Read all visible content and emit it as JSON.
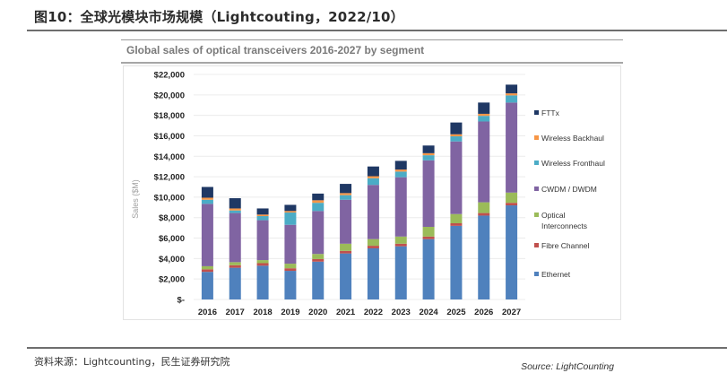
{
  "figure": {
    "title": "图10：全球光模块市场规模（Lightcouting，2022/10）",
    "footnote": "资料来源：Lightcounting，民生证券研究院"
  },
  "chart_data": {
    "type": "bar",
    "stacked": true,
    "title": "Global sales of optical transceivers 2016-2027 by segment",
    "xlabel": "",
    "ylabel": "Sales ($M)",
    "source": "Source: LightCounting",
    "ylim": [
      0,
      22000
    ],
    "yticks": [
      0,
      2000,
      4000,
      6000,
      8000,
      10000,
      12000,
      14000,
      16000,
      18000,
      20000,
      22000
    ],
    "ytick_labels": [
      "$-",
      "$2,000",
      "$4,000",
      "$6,000",
      "$8,000",
      "$10,000",
      "$12,000",
      "$14,000",
      "$16,000",
      "$18,000",
      "$20,000",
      "$22,000"
    ],
    "grid": true,
    "legend_position": "right",
    "categories": [
      "2016",
      "2017",
      "2018",
      "2019",
      "2020",
      "2021",
      "2022",
      "2023",
      "2024",
      "2025",
      "2026",
      "2027"
    ],
    "series": [
      {
        "name": "Ethernet",
        "color": "#4f81bd",
        "values": [
          2700,
          3100,
          3300,
          2800,
          3700,
          4500,
          5000,
          5200,
          5900,
          7200,
          8200,
          9200
        ]
      },
      {
        "name": "Fibre Channel",
        "color": "#c0504d",
        "values": [
          250,
          250,
          250,
          250,
          250,
          250,
          250,
          250,
          250,
          250,
          250,
          250
        ]
      },
      {
        "name": "Optical Interconnects",
        "color": "#9bbb59",
        "values": [
          300,
          300,
          300,
          450,
          500,
          700,
          650,
          700,
          950,
          900,
          1050,
          1000
        ]
      },
      {
        "name": "CWDM / DWDM",
        "color": "#8064a2",
        "values": [
          6100,
          4800,
          3900,
          3800,
          4200,
          4300,
          5300,
          5800,
          6500,
          7100,
          7900,
          8800
        ]
      },
      {
        "name": "Wireless Fronthaul",
        "color": "#4bacc6",
        "values": [
          400,
          250,
          400,
          1200,
          800,
          450,
          650,
          550,
          500,
          500,
          550,
          700
        ]
      },
      {
        "name": "Wireless Backhaul",
        "color": "#f79646",
        "values": [
          200,
          200,
          150,
          150,
          250,
          200,
          200,
          200,
          200,
          200,
          200,
          200
        ]
      },
      {
        "name": "FTTx",
        "color": "#1f3864",
        "values": [
          1050,
          1000,
          600,
          600,
          650,
          900,
          950,
          850,
          750,
          1150,
          1100,
          850
        ]
      }
    ],
    "legend_order": [
      "FTTx",
      "Wireless Backhaul",
      "Wireless Fronthaul",
      "CWDM / DWDM",
      "Optical Interconnects",
      "Fibre Channel",
      "Ethernet"
    ]
  }
}
